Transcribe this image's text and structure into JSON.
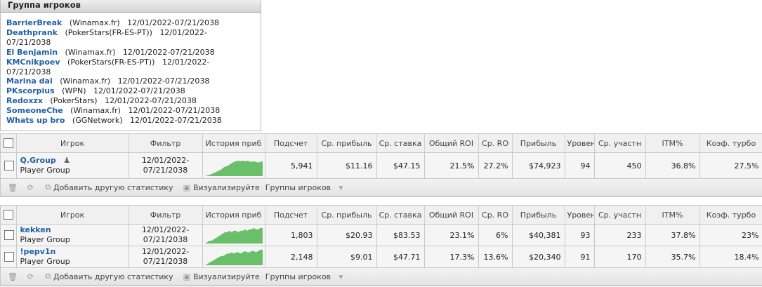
{
  "group_panel": {
    "title": "Группа игроков",
    "players": [
      {
        "name": "BarrierBreak",
        "site": "(Winamax.fr)",
        "range": "12/01/2022-07/21/2038"
      },
      {
        "name": "Deathprank",
        "site": "(PokerStars(FR-ES-PT))",
        "range": "12/01/2022-07/21/2038"
      },
      {
        "name": "El Benjamin",
        "site": "(Winamax.fr)",
        "range": "12/01/2022-07/21/2038"
      },
      {
        "name": "KMCnikpoev",
        "site": "(PokerStars(FR-ES-PT))",
        "range": "12/01/2022-07/21/2038"
      },
      {
        "name": "Marina dai",
        "site": "(Winamax.fr)",
        "range": "12/01/2022-07/21/2038"
      },
      {
        "name": "PKscorpius",
        "site": "(WPN)",
        "range": "12/01/2022-07/21/2038"
      },
      {
        "name": "Redoxzx",
        "site": "(PokerStars)",
        "range": "12/01/2022-07/21/2038"
      },
      {
        "name": "SomeoneChe",
        "site": "(Winamax.fr)",
        "range": "12/01/2022-07/21/2038"
      },
      {
        "name": "Whats up bro",
        "site": "(GGNetwork)",
        "range": "12/01/2022-07/21/2038"
      }
    ]
  },
  "columns": [
    "Игрок",
    "Фильтр",
    "История приб",
    "Подсчет",
    "Ср. прибыль",
    "Ср. ставка",
    "Общий ROI",
    "Ср. RO",
    "Прибыль",
    "Уровень",
    "Ср. участн",
    "ITM%",
    "Коэф. турбо"
  ],
  "sparkline_color": "#6abf69",
  "tables": [
    {
      "rows": [
        {
          "name": "Q.Group",
          "type": "Player Group",
          "filter1": "12/01/2022-",
          "filter2": "07/21/2038",
          "spark": [
            0,
            1,
            2,
            3,
            5,
            6,
            8,
            9,
            12,
            14,
            15,
            17,
            19,
            21,
            22,
            23,
            22,
            23,
            22,
            23,
            22,
            21,
            22,
            21,
            20,
            21,
            22
          ],
          "count": "5,941",
          "avg_profit": "$11.16",
          "avg_stake": "$47.15",
          "roi": "21.5%",
          "avg_roi": "27.2%",
          "profit": "$74,923",
          "level": "94",
          "avg_entrants": "450",
          "itm": "36.8%",
          "turbo": "27.5%"
        }
      ]
    },
    {
      "rows": [
        {
          "name": "kekken",
          "type": "Player Group",
          "filter1": "12/01/2022-",
          "filter2": "07/21/2038",
          "spark": [
            0,
            1,
            2,
            2,
            3,
            4,
            5,
            6,
            7,
            8,
            8,
            9,
            8,
            9,
            9,
            8,
            9,
            9,
            10,
            9,
            10,
            10,
            11,
            10,
            10,
            11,
            11
          ],
          "count": "1,803",
          "avg_profit": "$20.93",
          "avg_stake": "$83.53",
          "roi": "23.1%",
          "avg_roi": "6%",
          "profit": "$40,381",
          "level": "93",
          "avg_entrants": "233",
          "itm": "37.8%",
          "turbo": "23%"
        },
        {
          "name": "!pepv1n",
          "type": "Player Group",
          "filter1": "12/01/2022-",
          "filter2": "07/21/2038",
          "spark": [
            0,
            1,
            2,
            3,
            4,
            5,
            6,
            7,
            7,
            8,
            9,
            9,
            10,
            9,
            10,
            10,
            9,
            10,
            11,
            10,
            10,
            11,
            11,
            10,
            11,
            12,
            12
          ],
          "count": "2,148",
          "avg_profit": "$9.01",
          "avg_stake": "$47.71",
          "roi": "17.3%",
          "avg_roi": "13.6%",
          "profit": "$20,340",
          "level": "91",
          "avg_entrants": "170",
          "itm": "35.7%",
          "turbo": "18.4%"
        }
      ]
    }
  ],
  "toolbar": {
    "add_stat": "Добавить другую статистику",
    "visualize": "Визуализируйте",
    "groups": "Группы игроков"
  }
}
